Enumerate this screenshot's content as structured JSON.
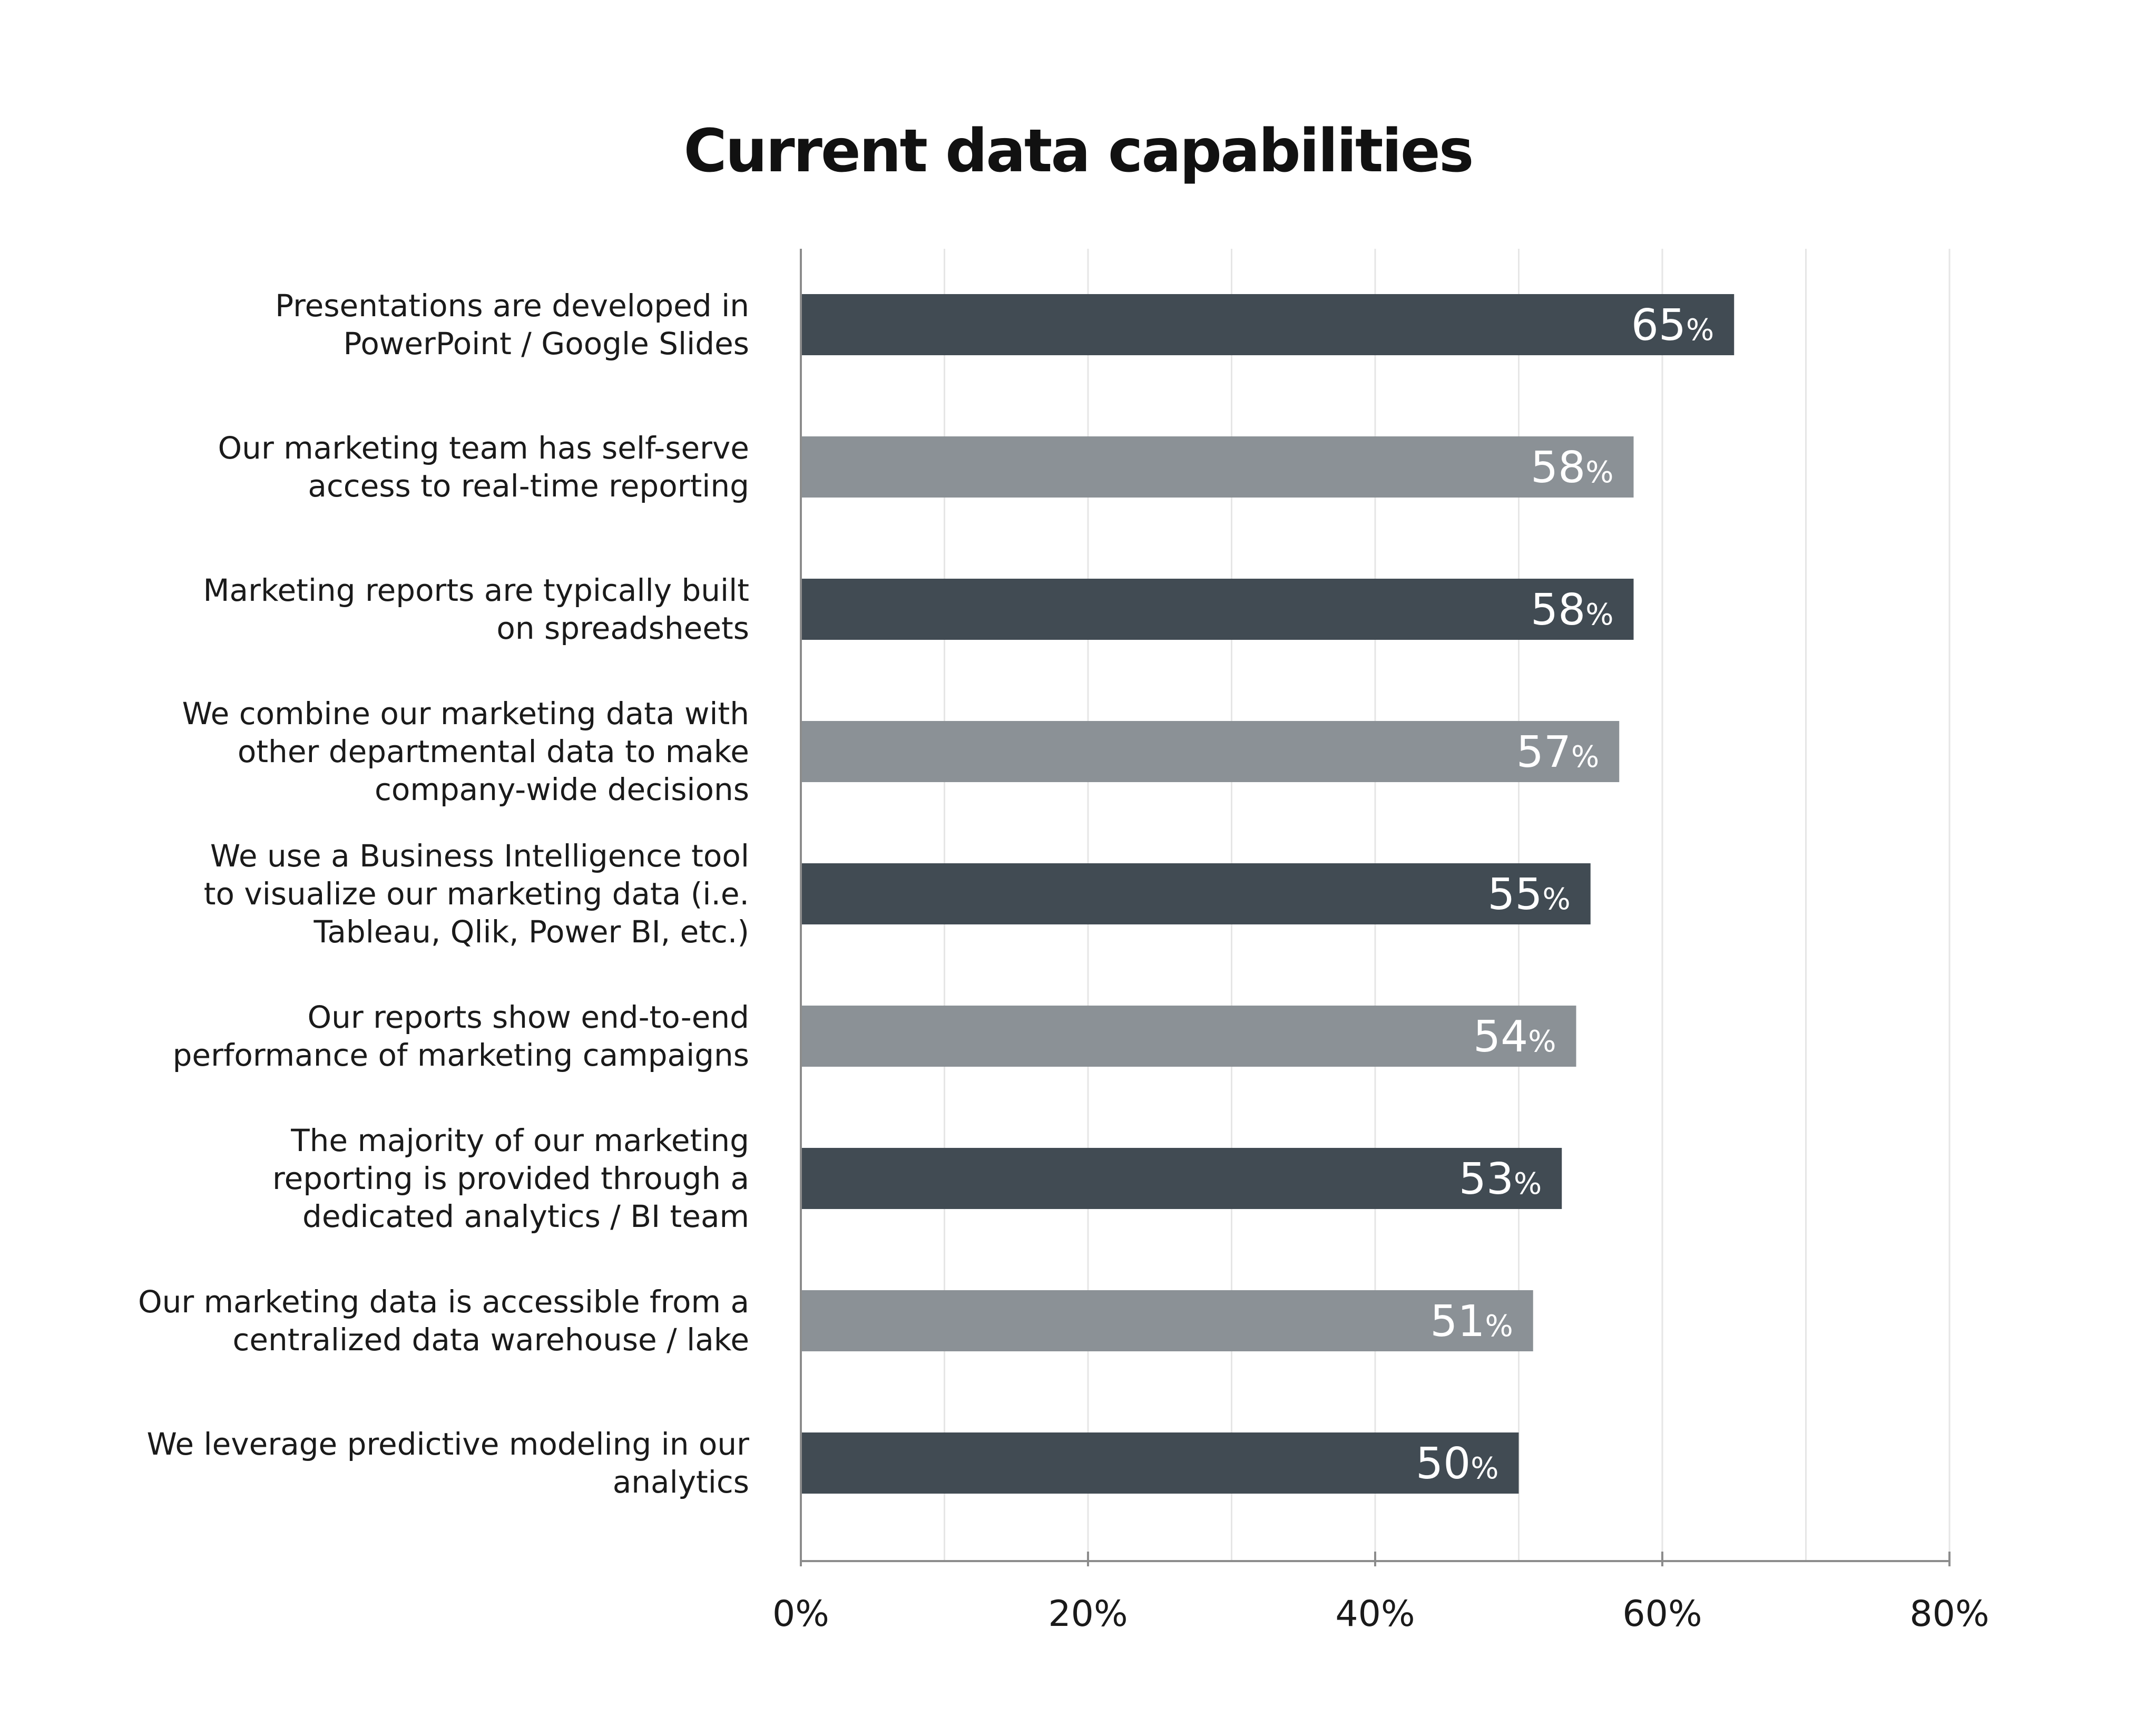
{
  "chart_data": {
    "type": "bar",
    "orientation": "horizontal",
    "title": "Current data capabilities",
    "xlabel": "",
    "ylabel": "",
    "xlim": [
      0,
      80
    ],
    "x_ticks": [
      "0%",
      "20%",
      "40%",
      "60%",
      "80%"
    ],
    "grid": true,
    "value_suffix": "%",
    "categories": [
      [
        "Presentations are developed in",
        "PowerPoint / Google Slides"
      ],
      [
        "Our marketing team has self-serve",
        "access to real-time reporting"
      ],
      [
        "Marketing reports are typically built",
        "on spreadsheets"
      ],
      [
        "We combine our marketing data with",
        "other departmental data to make",
        "company-wide decisions"
      ],
      [
        "We use a Business Intelligence tool",
        "to visualize our marketing data (i.e.",
        "Tableau, Qlik, Power BI, etc.)"
      ],
      [
        "Our reports show end-to-end",
        "performance of marketing campaigns"
      ],
      [
        "The majority of our marketing",
        "reporting is provided through a",
        "dedicated analytics / BI team"
      ],
      [
        "Our marketing data is accessible from a",
        "centralized data warehouse / lake"
      ],
      [
        "We leverage predictive modeling in our",
        "analytics"
      ]
    ],
    "values": [
      65,
      58,
      58,
      57,
      55,
      54,
      53,
      51,
      50
    ],
    "value_labels": [
      "65",
      "58",
      "58",
      "57",
      "55",
      "54",
      "53",
      "51",
      "50"
    ],
    "bar_colors": [
      "#414b53",
      "#8b9196",
      "#414b53",
      "#8b9196",
      "#414b53",
      "#8b9196",
      "#414b53",
      "#8b9196",
      "#414b53"
    ],
    "colors": {
      "axis": "#8c8c8c",
      "grid": "#e6e6e6",
      "value_text": "#ffffff"
    }
  }
}
